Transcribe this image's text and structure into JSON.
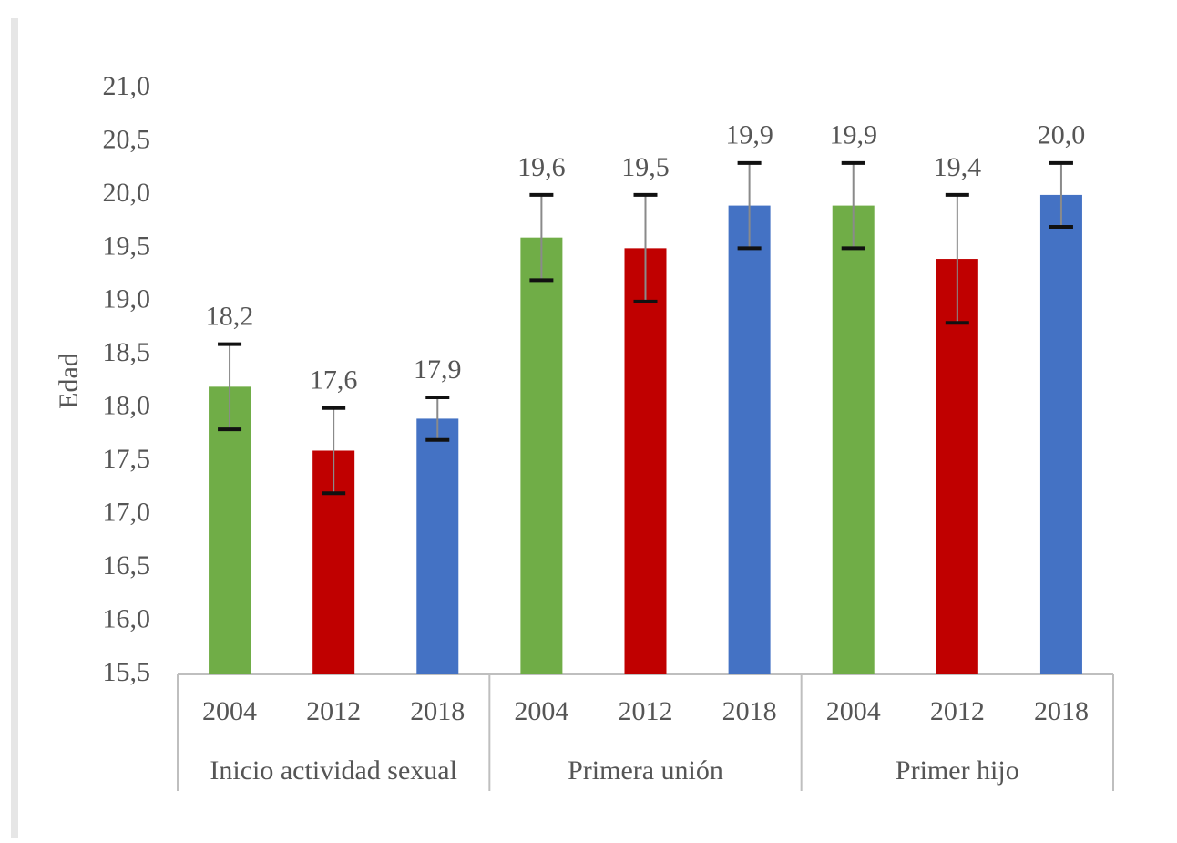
{
  "chart_data": {
    "type": "bar",
    "y_label": "Edad",
    "ylim": [
      15.5,
      21.0
    ],
    "yticks": [
      {
        "value": 15.5,
        "label": "15,5"
      },
      {
        "value": 16.0,
        "label": "16,0"
      },
      {
        "value": 16.5,
        "label": "16,5"
      },
      {
        "value": 17.0,
        "label": "17,0"
      },
      {
        "value": 17.5,
        "label": "17,5"
      },
      {
        "value": 18.0,
        "label": "18,0"
      },
      {
        "value": 18.5,
        "label": "18,5"
      },
      {
        "value": 19.0,
        "label": "19,0"
      },
      {
        "value": 19.5,
        "label": "19,5"
      },
      {
        "value": 20.0,
        "label": "20,0"
      },
      {
        "value": 20.5,
        "label": "20,5"
      },
      {
        "value": 21.0,
        "label": "21,0"
      }
    ],
    "colors": [
      "#70ad47",
      "#c00000",
      "#4472c4"
    ],
    "groups": [
      {
        "name": "Inicio actividad sexual",
        "categories": [
          "2004",
          "2012",
          "2018"
        ],
        "values": [
          18.2,
          17.6,
          17.9
        ],
        "value_labels": [
          "18,2",
          "17,6",
          "17,9"
        ],
        "errors": [
          0.4,
          0.4,
          0.2
        ]
      },
      {
        "name": "Primera unión",
        "categories": [
          "2004",
          "2012",
          "2018"
        ],
        "values": [
          19.6,
          19.5,
          19.9
        ],
        "value_labels": [
          "19,6",
          "19,5",
          "19,9"
        ],
        "errors": [
          0.4,
          0.5,
          0.4
        ]
      },
      {
        "name": "Primer hijo",
        "categories": [
          "2004",
          "2012",
          "2018"
        ],
        "values": [
          19.9,
          19.4,
          20.0
        ],
        "value_labels": [
          "19,9",
          "19,4",
          "20,0"
        ],
        "errors": [
          0.4,
          0.6,
          0.3
        ]
      }
    ]
  }
}
